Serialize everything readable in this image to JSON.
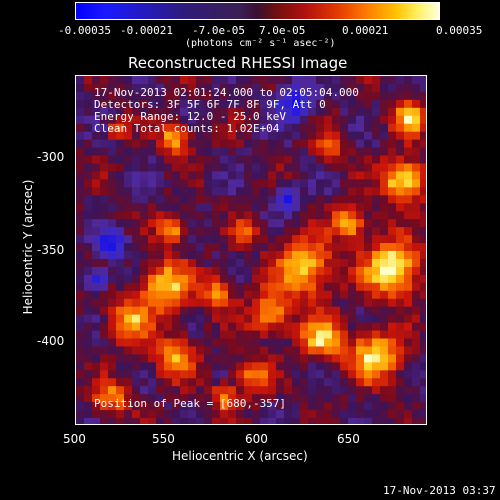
{
  "colorbar": {
    "ticks": [
      "-0.00035",
      "-0.00021",
      "-7.0e-05",
      "7.0e-05",
      "0.00021",
      "0.00035"
    ],
    "units": "(photons cm⁻² s⁻¹ asec⁻²)"
  },
  "title": "Reconstructed RHESSI Image",
  "info": {
    "time": "17-Nov-2013 02:01:24.000 to 02:05:04.000",
    "detectors": "Detectors: 3F 5F 6F 7F 8F 9F, Att 0",
    "energy": "Energy Range: 12.0 - 25.0 keV",
    "clean": "Clean    Total counts: 1.02E+04",
    "peak": "Position of Peak = [680,-357]"
  },
  "axes": {
    "xlabel": "Heliocentric X (arcsec)",
    "ylabel": "Heliocentric Y (arcsec)",
    "xticks": [
      "500",
      "550",
      "600",
      "650"
    ],
    "yticks": [
      "-300",
      "-350",
      "-400"
    ]
  },
  "timestamp": "17-Nov-2013 03:37",
  "colors": {
    "background": "#000000",
    "foreground": "#ffffff",
    "cmap_low": "#0000ff",
    "cmap_mid": "#3a1f55",
    "cmap_high": "#ffffe0"
  }
}
